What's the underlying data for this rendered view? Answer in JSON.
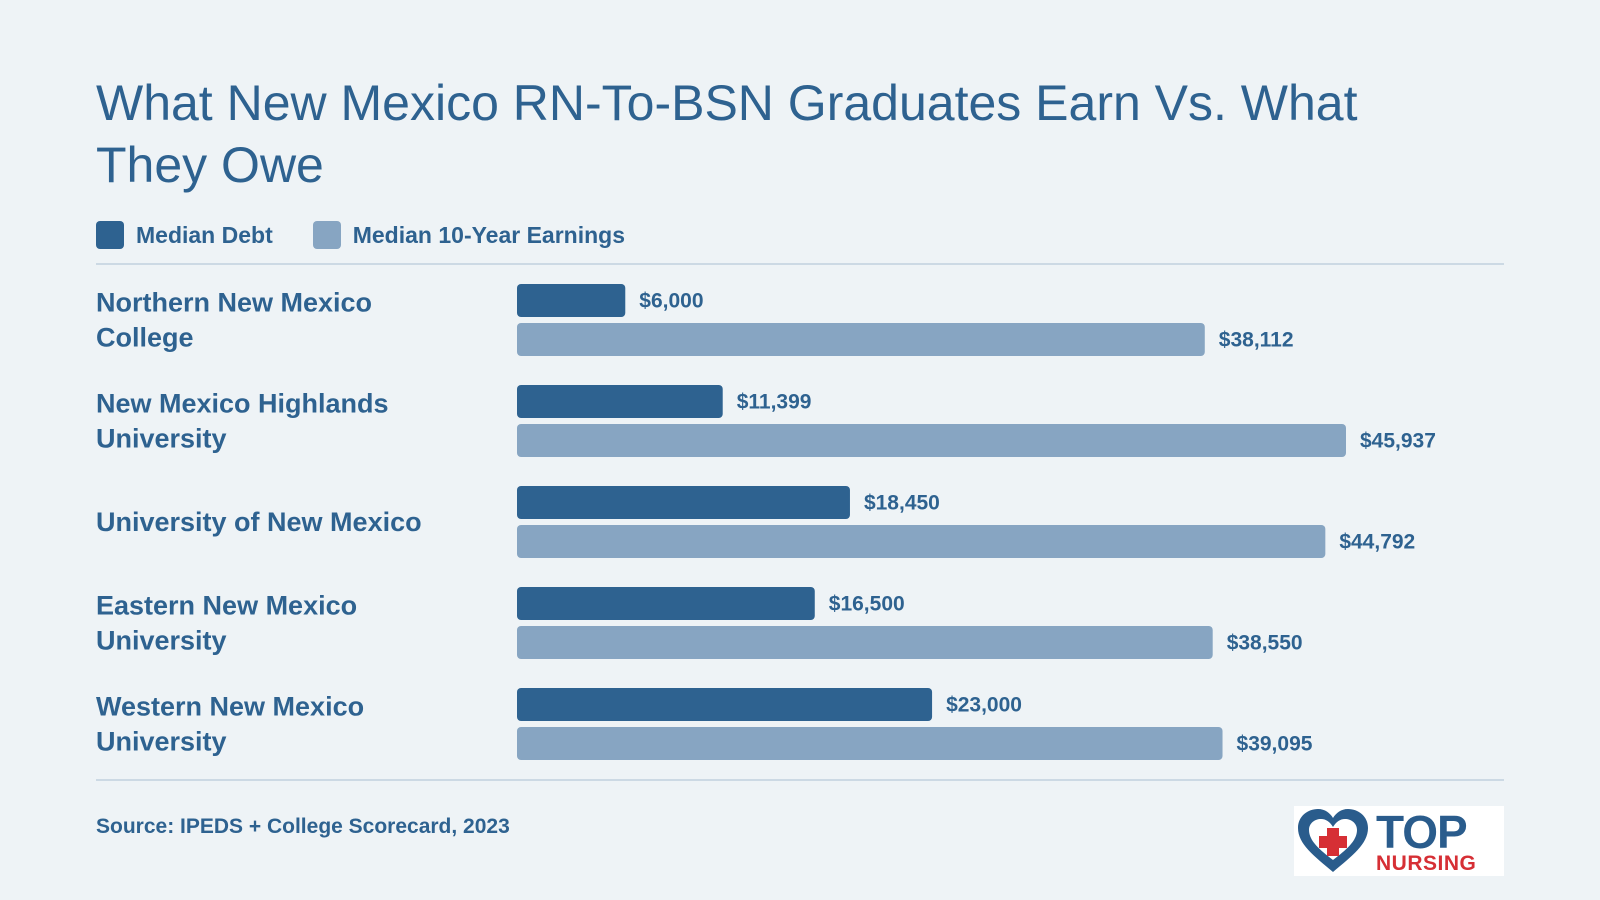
{
  "chart_data": {
    "type": "bar",
    "orientation": "horizontal",
    "title": "What New Mexico RN-To-BSN Graduates Earn Vs. What They Owe",
    "categories": [
      [
        "Northern New Mexico",
        "College"
      ],
      [
        "New Mexico Highlands",
        "University"
      ],
      [
        "University of New Mexico"
      ],
      [
        "Eastern New Mexico",
        "University"
      ],
      [
        "Western New Mexico",
        "University"
      ]
    ],
    "series": [
      {
        "name": "Median Debt",
        "color": "#2e6290",
        "values": [
          6000,
          11399,
          18450,
          16500,
          23000
        ],
        "labels": [
          "$6,000",
          "$11,399",
          "$18,450",
          "$16,500",
          "$23,000"
        ]
      },
      {
        "name": "Median 10-Year Earnings",
        "color": "#87a5c2",
        "values": [
          38112,
          45937,
          44792,
          38550,
          39095
        ],
        "labels": [
          "$38,112",
          "$45,937",
          "$44,792",
          "$38,550",
          "$39,095"
        ]
      }
    ],
    "legend": "top-left",
    "grid": false,
    "xlim": [
      0,
      45937
    ]
  },
  "source": "Source: IPEDS + College Scorecard, 2023",
  "logo": {
    "top": "TOP",
    "bottom": "NURSING"
  }
}
